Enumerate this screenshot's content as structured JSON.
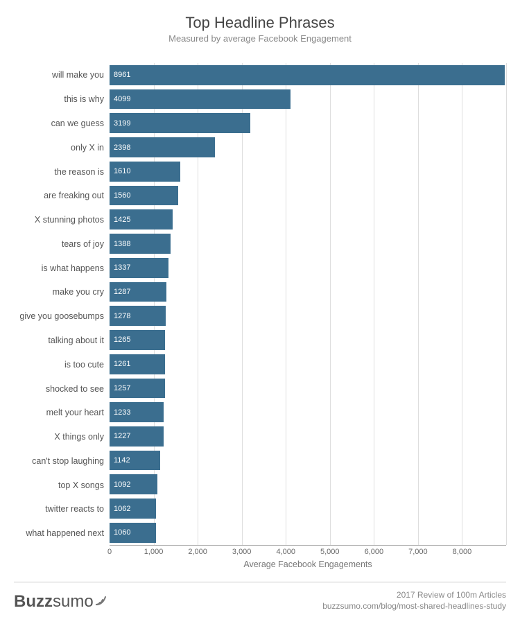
{
  "title": "Top Headline Phrases",
  "subtitle": "Measured by average Facebook Engagement",
  "x_axis_label": "Average Facebook Engagements",
  "chart": {
    "type": "horizontal-bar",
    "bar_color": "#3b6e8f",
    "value_label_color": "#ffffff",
    "value_label_fontsize": 11,
    "category_label_color": "#555555",
    "category_label_fontsize": 12.5,
    "gridline_color": "#dddddd",
    "background_color": "#ffffff",
    "x_min": 0,
    "x_max": 9000,
    "x_tick_step": 1000,
    "x_ticks": [
      "0",
      "1,000",
      "2,000",
      "3,000",
      "4,000",
      "5,000",
      "6,000",
      "7,000",
      "8,000"
    ],
    "items": [
      {
        "label": "will make you",
        "value": 8961
      },
      {
        "label": "this is why",
        "value": 4099
      },
      {
        "label": "can we guess",
        "value": 3199
      },
      {
        "label": "only X in",
        "value": 2398
      },
      {
        "label": "the reason is",
        "value": 1610
      },
      {
        "label": "are freaking out",
        "value": 1560
      },
      {
        "label": "X stunning photos",
        "value": 1425
      },
      {
        "label": "tears of joy",
        "value": 1388
      },
      {
        "label": "is what happens",
        "value": 1337
      },
      {
        "label": "make you cry",
        "value": 1287
      },
      {
        "label": "give you goosebumps",
        "value": 1278
      },
      {
        "label": "talking about it",
        "value": 1265
      },
      {
        "label": "is too cute",
        "value": 1261
      },
      {
        "label": "shocked to see",
        "value": 1257
      },
      {
        "label": "melt your heart",
        "value": 1233
      },
      {
        "label": "X things only",
        "value": 1227
      },
      {
        "label": "can't stop laughing",
        "value": 1142
      },
      {
        "label": "top X songs",
        "value": 1092
      },
      {
        "label": "twitter reacts to",
        "value": 1062
      },
      {
        "label": "what happened next",
        "value": 1060
      }
    ]
  },
  "brand": {
    "bold": "Buzz",
    "light": "sumo"
  },
  "footnote_line1": "2017 Review of 100m Articles",
  "footnote_line2": "buzzsumo.com/blog/most-shared-headlines-study"
}
